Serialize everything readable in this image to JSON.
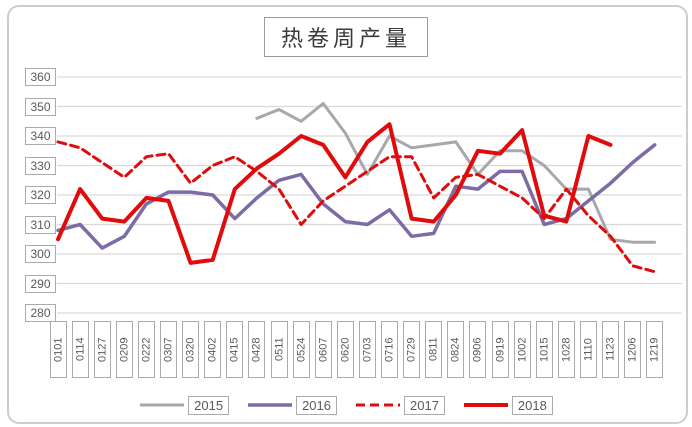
{
  "chart_data": {
    "type": "line",
    "title": "热卷周产量",
    "xlabel": "",
    "ylabel": "",
    "grid": true,
    "legend_position": "bottom",
    "y_axis": {
      "min": 280,
      "max": 360,
      "step": 10,
      "ticks": [
        "360",
        "350",
        "340",
        "330",
        "320",
        "310",
        "300",
        "290",
        "280"
      ]
    },
    "categories": [
      "0101",
      "0114",
      "0127",
      "0209",
      "0222",
      "0307",
      "0320",
      "0402",
      "0415",
      "0428",
      "0511",
      "0524",
      "0607",
      "0620",
      "0703",
      "0716",
      "0729",
      "0811",
      "0824",
      "0906",
      "0919",
      "1002",
      "1015",
      "1028",
      "1110",
      "1123",
      "1206",
      "1219"
    ],
    "series": [
      {
        "name": "2015",
        "color": "#a8a8ac",
        "style": "solid",
        "width": 3,
        "values": [
          null,
          null,
          null,
          null,
          null,
          null,
          null,
          null,
          null,
          346,
          349,
          345,
          351,
          341,
          327,
          340,
          336,
          337,
          338,
          327,
          335,
          335,
          330,
          322,
          322,
          305,
          304,
          304
        ]
      },
      {
        "name": "2016",
        "color": "#7d6ba5",
        "style": "solid",
        "width": 3.5,
        "values": [
          308,
          310,
          302,
          306,
          317,
          321,
          321,
          320,
          312,
          319,
          325,
          327,
          317,
          311,
          310,
          315,
          306,
          307,
          323,
          322,
          328,
          328,
          310,
          312,
          318,
          324,
          331,
          337
        ]
      },
      {
        "name": "2017",
        "color": "#e00b0b",
        "style": "dashed",
        "width": 3,
        "values": [
          338,
          336,
          331,
          326,
          333,
          334,
          324,
          330,
          333,
          328,
          322,
          310,
          318,
          323,
          328,
          333,
          333,
          319,
          326,
          327,
          323,
          319,
          312,
          322,
          313,
          306,
          296,
          294
        ]
      },
      {
        "name": "2018",
        "color": "#e00b0b",
        "style": "solid",
        "width": 4,
        "values": [
          305,
          322,
          312,
          311,
          319,
          318,
          297,
          298,
          322,
          329,
          334,
          340,
          337,
          326,
          338,
          344,
          312,
          311,
          320,
          335,
          334,
          342,
          313,
          311,
          340,
          337,
          null,
          null
        ]
      }
    ],
    "colors": {
      "gridline": "#d9d9d9",
      "frame_border": "#c9cdd4",
      "tick_border": "#ababab",
      "text": "#595959"
    }
  }
}
